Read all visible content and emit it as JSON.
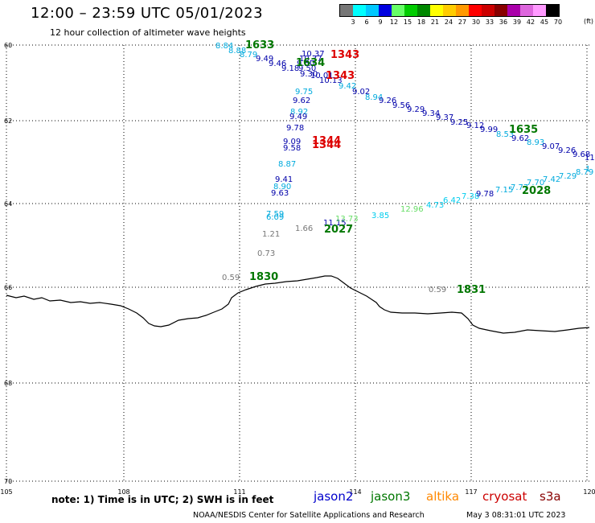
{
  "title": "12:00 – 23:59 UTC 05/01/2023",
  "subtitle": "12 hour collection of altimeter wave heights",
  "legend": {
    "colors": [
      "#777777",
      "#00ffff",
      "#00c8ff",
      "#0000e0",
      "#66ff66",
      "#00cc00",
      "#008800",
      "#ffff00",
      "#ffcc00",
      "#ff9900",
      "#ff0000",
      "#cc0000",
      "#880000",
      "#aa00aa",
      "#dd66dd",
      "#ff99ff",
      "#000000"
    ],
    "ticks": [
      "3",
      "6",
      "9",
      "12",
      "15",
      "18",
      "21",
      "24",
      "27",
      "30",
      "33",
      "36",
      "39",
      "42",
      "45",
      "70"
    ],
    "unit": "(ft)"
  },
  "axes": {
    "x_labels": [
      "105",
      "108",
      "111",
      "114",
      "117",
      "120"
    ],
    "y_labels": [
      "60",
      "62",
      "64",
      "66",
      "68",
      "70"
    ]
  },
  "obs": [
    {
      "text": "8.84",
      "color": "#00aadd"
    },
    {
      "text": "8.88",
      "color": "#00aadd"
    },
    {
      "text": "8.79",
      "color": "#00aadd"
    },
    {
      "text": "9.49",
      "color": "#0000aa"
    },
    {
      "text": "9.46",
      "color": "#0000aa"
    },
    {
      "text": "9.18",
      "color": "#0000aa"
    },
    {
      "text": "10.37",
      "color": "#0000aa"
    },
    {
      "text": "10.37",
      "color": "#0000aa"
    },
    {
      "text": "9.50",
      "color": "#0000aa"
    },
    {
      "text": "9.50",
      "color": "#0000aa"
    },
    {
      "text": "9.30",
      "color": "#0000aa"
    },
    {
      "text": "10.01",
      "color": "#0000aa"
    },
    {
      "text": "10.13",
      "color": "#0000aa"
    },
    {
      "text": "9.42",
      "color": "#00aadd"
    },
    {
      "text": "9.02",
      "color": "#0000aa"
    },
    {
      "text": "8.94",
      "color": "#00aadd"
    },
    {
      "text": "9.26",
      "color": "#0000aa"
    },
    {
      "text": "9.56",
      "color": "#0000aa"
    },
    {
      "text": "9.29",
      "color": "#0000aa"
    },
    {
      "text": "9.34",
      "color": "#0000aa"
    },
    {
      "text": "9.37",
      "color": "#0000aa"
    },
    {
      "text": "9.25",
      "color": "#0000aa"
    },
    {
      "text": "9.12",
      "color": "#0000aa"
    },
    {
      "text": "9.99",
      "color": "#0000aa"
    },
    {
      "text": "8.53",
      "color": "#00aadd"
    },
    {
      "text": "9.62",
      "color": "#0000aa"
    },
    {
      "text": "8.93",
      "color": "#00aadd"
    },
    {
      "text": "9.07",
      "color": "#0000aa"
    },
    {
      "text": "9.26",
      "color": "#0000aa"
    },
    {
      "text": "9.68",
      "color": "#0000aa"
    },
    {
      "text": "11",
      "color": "#0000aa"
    },
    {
      "text": "9.75",
      "color": "#00aadd"
    },
    {
      "text": "9.62",
      "color": "#0000aa"
    },
    {
      "text": "8.92",
      "color": "#00aadd"
    },
    {
      "text": "9.49",
      "color": "#0000aa"
    },
    {
      "text": "9.78",
      "color": "#0000aa"
    },
    {
      "text": "9.09",
      "color": "#0000aa"
    },
    {
      "text": "9.58",
      "color": "#0000aa"
    },
    {
      "text": "8.87",
      "color": "#00aadd"
    },
    {
      "text": "9.41",
      "color": "#0000aa"
    },
    {
      "text": "8.90",
      "color": "#00aadd"
    },
    {
      "text": "9.63",
      "color": "#0000aa"
    },
    {
      "text": "7.59",
      "color": "#00aadd"
    },
    {
      "text": "6.09",
      "color": "#00aadd"
    },
    {
      "text": "1.21",
      "color": "#777777"
    },
    {
      "text": "1.66",
      "color": "#777777"
    },
    {
      "text": "0.73",
      "color": "#777777"
    },
    {
      "text": "0.59",
      "color": "#777777"
    },
    {
      "text": "0.59",
      "color": "#777777"
    },
    {
      "text": "11.15",
      "color": "#0000aa"
    },
    {
      "text": "13.73",
      "color": "#66dd66"
    },
    {
      "text": "3.85",
      "color": "#00ccee"
    },
    {
      "text": "12.96",
      "color": "#66dd66"
    },
    {
      "text": "4.73",
      "color": "#00ccee"
    },
    {
      "text": "6.42",
      "color": "#00ccee"
    },
    {
      "text": "7.38",
      "color": "#00ccee"
    },
    {
      "text": "9.78",
      "color": "#0000aa"
    },
    {
      "text": "7.15",
      "color": "#00aadd"
    },
    {
      "text": "7.77",
      "color": "#00aadd"
    },
    {
      "text": "7.70",
      "color": "#00aadd"
    },
    {
      "text": "7.42",
      "color": "#00aadd"
    },
    {
      "text": "7.29",
      "color": "#00aadd"
    },
    {
      "text": "8.79",
      "color": "#00aadd"
    },
    {
      "text": "1",
      "color": "#00aadd"
    }
  ],
  "passes": [
    {
      "text": "1633",
      "color": "#007700"
    },
    {
      "text": "1634",
      "color": "#007700"
    },
    {
      "text": "1343",
      "color": "#dd0000"
    },
    {
      "text": "1343",
      "color": "#dd0000"
    },
    {
      "text": "1635",
      "color": "#007700"
    },
    {
      "text": "1344",
      "color": "#dd0000"
    },
    {
      "text": "1344",
      "color": "#dd0000"
    },
    {
      "text": "2027",
      "color": "#007700"
    },
    {
      "text": "2028",
      "color": "#007700"
    },
    {
      "text": "1830",
      "color": "#007700"
    },
    {
      "text": "1831",
      "color": "#007700"
    }
  ],
  "note": "note:  1) Time is in UTC;  2) SWH is in feet",
  "satellites": [
    {
      "name": "jason2",
      "color": "#0000cc"
    },
    {
      "name": "jason3",
      "color": "#007700"
    },
    {
      "name": "altika",
      "color": "#ff8800"
    },
    {
      "name": "cryosat",
      "color": "#cc0000"
    },
    {
      "name": "s3a",
      "color": "#880000"
    }
  ],
  "credit": "NOAA/NESDIS Center for Satellite Applications and Research",
  "timestamp": "May  3 08:31:01 UTC 2023"
}
